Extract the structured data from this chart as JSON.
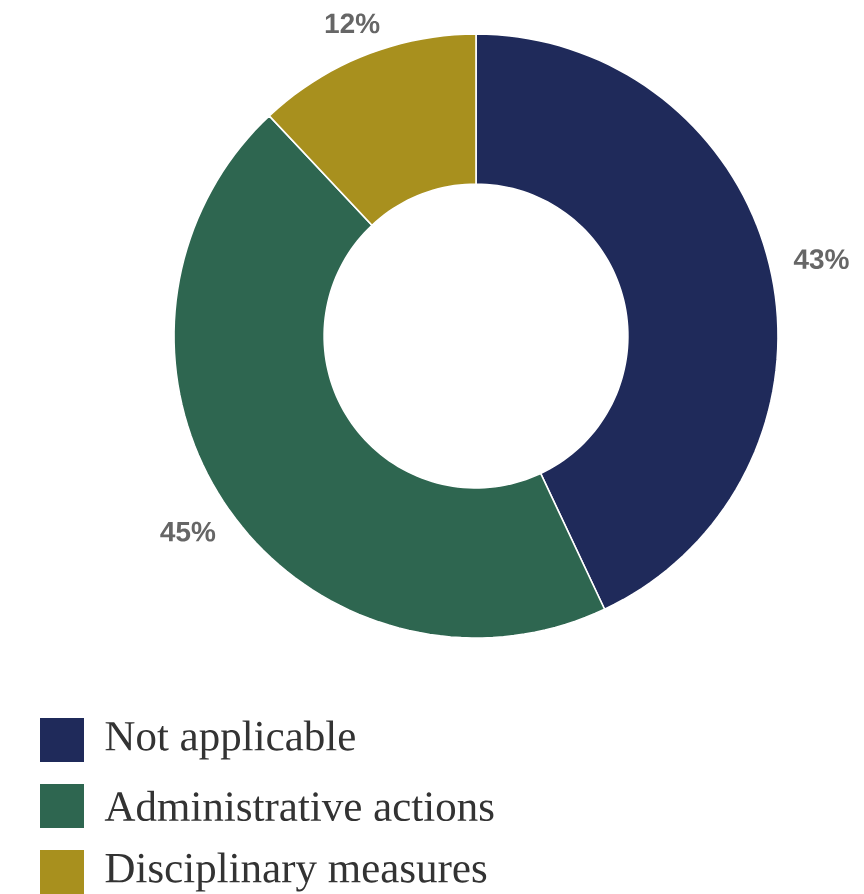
{
  "chart_data": {
    "type": "donut",
    "categories": [
      "Not applicable",
      "Administrative actions",
      "Disciplinary measures"
    ],
    "values": [
      43,
      45,
      12
    ],
    "colors": [
      "#1f2a5a",
      "#2e6650",
      "#a8901e"
    ],
    "value_labels": [
      "43%",
      "45%",
      "12%"
    ],
    "legend": "bottom"
  }
}
